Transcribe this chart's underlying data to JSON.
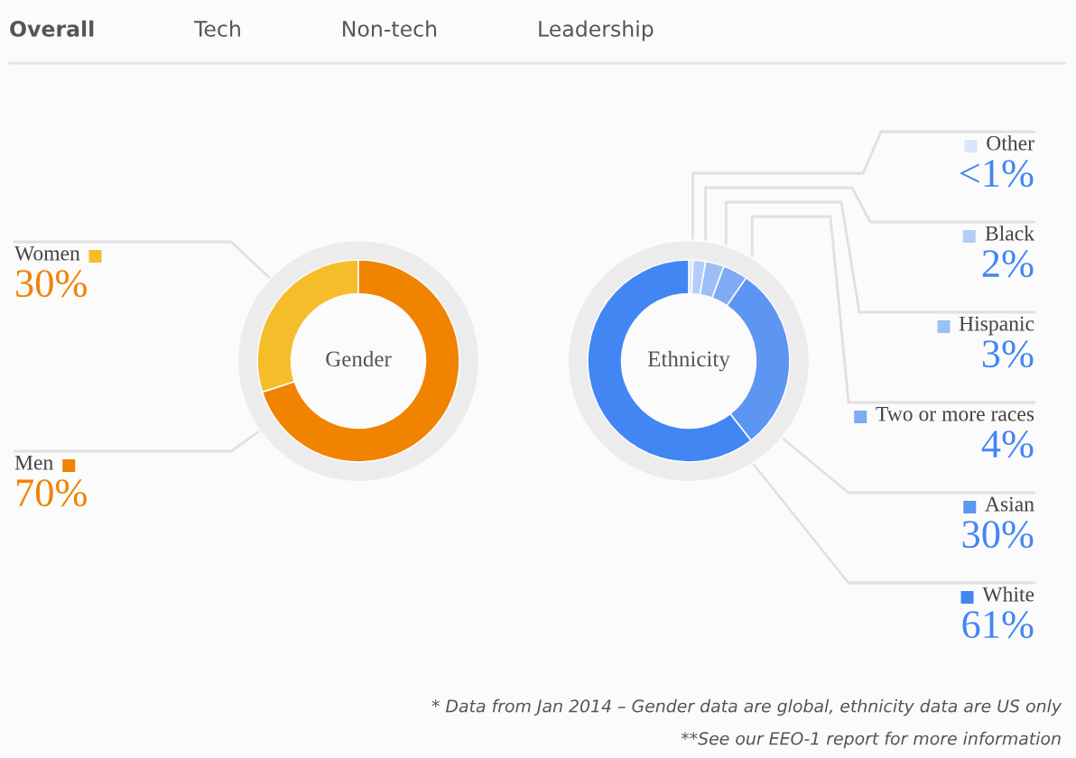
{
  "chart_data": [
    {
      "type": "donut",
      "title": "Gender",
      "categories": [
        "Women",
        "Men"
      ],
      "values": [
        30,
        70
      ],
      "colors": [
        "#f6bd2b",
        "#f08300"
      ],
      "value_labels": [
        "30%",
        "70%"
      ],
      "legend": "left",
      "annotations": [
        "Overall",
        "Tech",
        "Non-tech",
        "Leadership"
      ]
    },
    {
      "type": "donut",
      "title": "Ethnicity",
      "categories": [
        "Other",
        "Black",
        "Hispanic",
        "Two or more races",
        "Asian",
        "White"
      ],
      "values": [
        0.7,
        2,
        3,
        4,
        30,
        61
      ],
      "colors": [
        "#d9e6fc",
        "#b3cdfa",
        "#9dbff8",
        "#7eaaf6",
        "#5d95f3",
        "#4286f4"
      ],
      "value_labels": [
        "<1%",
        "2%",
        "3%",
        "4%",
        "30%",
        "61%"
      ],
      "legend": "right",
      "annotations": [
        "* Data from Jan 2014 – Gender data are global, ethnicity data are US only",
        "**See our EEO-1 report for more information"
      ]
    }
  ]
}
